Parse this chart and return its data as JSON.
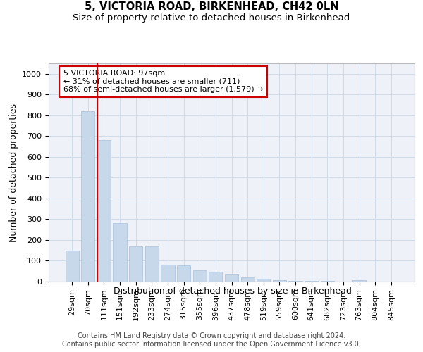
{
  "title": "5, VICTORIA ROAD, BIRKENHEAD, CH42 0LN",
  "subtitle": "Size of property relative to detached houses in Birkenhead",
  "xlabel": "Distribution of detached houses by size in Birkenhead",
  "ylabel": "Number of detached properties",
  "categories": [
    "29sqm",
    "70sqm",
    "111sqm",
    "151sqm",
    "192sqm",
    "233sqm",
    "274sqm",
    "315sqm",
    "355sqm",
    "396sqm",
    "437sqm",
    "478sqm",
    "519sqm",
    "559sqm",
    "600sqm",
    "641sqm",
    "682sqm",
    "723sqm",
    "763sqm",
    "804sqm",
    "845sqm"
  ],
  "bar_values": [
    150,
    820,
    680,
    280,
    170,
    170,
    80,
    78,
    55,
    48,
    38,
    22,
    14,
    7,
    5,
    4,
    4,
    0,
    7,
    0,
    0
  ],
  "bar_color": "#c8d8eb",
  "bar_edge_color": "#a8c0d8",
  "grid_color": "#d0dce8",
  "bg_color": "#eef2f8",
  "vline_color": "#cc0000",
  "vline_position": 2,
  "annotation_text": "5 VICTORIA ROAD: 97sqm\n← 31% of detached houses are smaller (711)\n68% of semi-detached houses are larger (1,579) →",
  "annotation_box_facecolor": "#ffffff",
  "annotation_box_edgecolor": "#cc0000",
  "ylim": [
    0,
    1050
  ],
  "yticks": [
    0,
    100,
    200,
    300,
    400,
    500,
    600,
    700,
    800,
    900,
    1000
  ],
  "footer": "Contains HM Land Registry data © Crown copyright and database right 2024.\nContains public sector information licensed under the Open Government Licence v3.0.",
  "title_fontsize": 10.5,
  "subtitle_fontsize": 9.5,
  "ylabel_fontsize": 9,
  "xlabel_fontsize": 9,
  "tick_fontsize": 8,
  "annotation_fontsize": 8,
  "footer_fontsize": 7
}
